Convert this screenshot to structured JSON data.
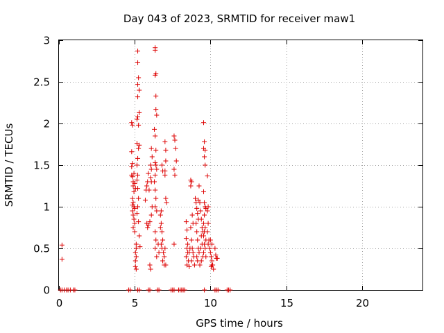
{
  "chart_data": {
    "type": "scatter",
    "title": "Day 043 of 2023, SRMTID for receiver maw1",
    "xlabel": "GPS time / hours",
    "ylabel": "SRMTID / TECUs",
    "xlim": [
      0,
      24
    ],
    "ylim": [
      0,
      3
    ],
    "xticks": [
      0,
      5,
      10,
      15,
      20
    ],
    "yticks": [
      0,
      0.5,
      1,
      1.5,
      2,
      2.5,
      3
    ],
    "xtick_labels": [
      "0",
      "5",
      "10",
      "15",
      "20"
    ],
    "ytick_labels": [
      "0",
      "0.5",
      "1",
      "1.5",
      "2",
      "2.5",
      "3"
    ],
    "grid": true,
    "marker": "+",
    "series": [
      {
        "color": "#dd0000",
        "points": [
          [
            0.2,
            0.54
          ],
          [
            0.2,
            0.37
          ],
          [
            0.1,
            0.0
          ],
          [
            0.2,
            0.0
          ],
          [
            0.35,
            0.0
          ],
          [
            0.5,
            0.0
          ],
          [
            0.6,
            0.0
          ],
          [
            0.75,
            0.0
          ],
          [
            0.95,
            0.0
          ],
          [
            1.05,
            0.0
          ],
          [
            4.6,
            0.0
          ],
          [
            4.7,
            0.0
          ],
          [
            5.2,
            0.0
          ],
          [
            5.3,
            0.0
          ],
          [
            5.9,
            0.0
          ],
          [
            6.0,
            0.0
          ],
          [
            6.5,
            0.0
          ],
          [
            6.6,
            0.0
          ],
          [
            7.4,
            0.0
          ],
          [
            7.5,
            0.0
          ],
          [
            7.6,
            0.0
          ],
          [
            7.9,
            0.0
          ],
          [
            8.0,
            0.0
          ],
          [
            8.1,
            0.0
          ],
          [
            8.2,
            0.0
          ],
          [
            8.3,
            0.0
          ],
          [
            9.6,
            0.0
          ],
          [
            10.3,
            0.0
          ],
          [
            10.4,
            0.0
          ],
          [
            10.5,
            0.0
          ],
          [
            11.1,
            0.0
          ],
          [
            11.2,
            0.0
          ],
          [
            11.3,
            0.0
          ],
          [
            4.8,
            2.01
          ],
          [
            4.85,
            1.98
          ],
          [
            4.8,
            1.66
          ],
          [
            4.85,
            1.52
          ],
          [
            4.8,
            1.48
          ],
          [
            4.8,
            1.38
          ],
          [
            4.85,
            1.36
          ],
          [
            4.9,
            1.3
          ],
          [
            4.9,
            1.25
          ],
          [
            4.95,
            1.18
          ],
          [
            4.85,
            1.1
          ],
          [
            4.9,
            1.05
          ],
          [
            4.85,
            1.02
          ],
          [
            4.95,
            1.0
          ],
          [
            5.0,
            0.98
          ],
          [
            4.85,
            0.95
          ],
          [
            4.9,
            0.9
          ],
          [
            4.95,
            0.85
          ],
          [
            5.0,
            0.8
          ],
          [
            4.9,
            0.75
          ],
          [
            5.0,
            0.7
          ],
          [
            4.95,
            1.4
          ],
          [
            5.0,
            1.28
          ],
          [
            5.05,
            1.22
          ],
          [
            5.1,
            0.55
          ],
          [
            5.1,
            0.5
          ],
          [
            5.05,
            0.45
          ],
          [
            5.1,
            0.4
          ],
          [
            5.05,
            0.35
          ],
          [
            5.05,
            0.28
          ],
          [
            5.1,
            0.25
          ],
          [
            5.2,
            2.87
          ],
          [
            5.2,
            2.73
          ],
          [
            5.25,
            2.55
          ],
          [
            5.2,
            2.47
          ],
          [
            5.3,
            2.4
          ],
          [
            5.2,
            2.32
          ],
          [
            5.3,
            2.13
          ],
          [
            5.2,
            2.08
          ],
          [
            5.15,
            2.05
          ],
          [
            5.25,
            1.98
          ],
          [
            5.15,
            1.76
          ],
          [
            5.3,
            1.74
          ],
          [
            5.25,
            1.7
          ],
          [
            5.2,
            1.58
          ],
          [
            5.15,
            1.5
          ],
          [
            5.2,
            1.38
          ],
          [
            5.15,
            1.32
          ],
          [
            5.2,
            1.22
          ],
          [
            5.25,
            1.1
          ],
          [
            5.2,
            1.0
          ],
          [
            5.15,
            0.92
          ],
          [
            5.25,
            0.82
          ],
          [
            5.3,
            0.65
          ],
          [
            5.35,
            0.52
          ],
          [
            5.7,
            1.08
          ],
          [
            5.75,
            1.2
          ],
          [
            5.8,
            1.25
          ],
          [
            5.85,
            1.3
          ],
          [
            5.9,
            1.4
          ],
          [
            5.95,
            1.2
          ],
          [
            5.8,
            0.8
          ],
          [
            5.85,
            0.75
          ],
          [
            5.9,
            0.78
          ],
          [
            6.0,
            0.82
          ],
          [
            6.05,
            1.5
          ],
          [
            6.1,
            1.7
          ],
          [
            6.15,
            1.6
          ],
          [
            6.1,
            1.45
          ],
          [
            6.05,
            1.35
          ],
          [
            6.1,
            1.3
          ],
          [
            6.15,
            1.0
          ],
          [
            6.1,
            0.9
          ],
          [
            6.0,
            0.3
          ],
          [
            6.05,
            0.25
          ],
          [
            6.35,
            2.91
          ],
          [
            6.35,
            2.88
          ],
          [
            6.4,
            2.6
          ],
          [
            6.35,
            2.58
          ],
          [
            6.4,
            2.33
          ],
          [
            6.4,
            2.17
          ],
          [
            6.45,
            2.1
          ],
          [
            6.3,
            1.93
          ],
          [
            6.35,
            1.85
          ],
          [
            6.4,
            1.68
          ],
          [
            6.35,
            1.53
          ],
          [
            6.4,
            1.5
          ],
          [
            6.45,
            1.45
          ],
          [
            6.35,
            1.38
          ],
          [
            6.3,
            1.3
          ],
          [
            6.35,
            1.2
          ],
          [
            6.4,
            1.1
          ],
          [
            6.35,
            1.0
          ],
          [
            6.45,
            0.95
          ],
          [
            6.35,
            0.7
          ],
          [
            6.4,
            0.6
          ],
          [
            6.35,
            0.5
          ],
          [
            6.45,
            0.4
          ],
          [
            6.55,
            0.55
          ],
          [
            6.6,
            0.45
          ],
          [
            6.7,
            0.9
          ],
          [
            6.75,
            0.8
          ],
          [
            6.7,
            0.75
          ],
          [
            6.8,
            0.7
          ],
          [
            6.85,
            0.6
          ],
          [
            6.75,
            0.55
          ],
          [
            6.8,
            0.5
          ],
          [
            6.9,
            0.45
          ],
          [
            6.95,
            0.4
          ],
          [
            6.85,
            0.35
          ],
          [
            6.75,
            0.95
          ],
          [
            6.85,
            1.43
          ],
          [
            6.8,
            1.5
          ],
          [
            7.0,
            1.43
          ],
          [
            7.0,
            1.38
          ],
          [
            7.05,
            1.55
          ],
          [
            7.05,
            1.68
          ],
          [
            7.0,
            1.78
          ],
          [
            7.05,
            1.1
          ],
          [
            7.1,
            1.05
          ],
          [
            7.0,
            0.5
          ],
          [
            7.05,
            0.3
          ],
          [
            6.95,
            0.3
          ],
          [
            7.6,
            1.85
          ],
          [
            7.65,
            1.8
          ],
          [
            7.7,
            1.7
          ],
          [
            7.75,
            1.55
          ],
          [
            7.6,
            1.45
          ],
          [
            7.65,
            1.38
          ],
          [
            7.6,
            0.55
          ],
          [
            8.4,
            0.82
          ],
          [
            8.45,
            0.72
          ],
          [
            8.4,
            0.62
          ],
          [
            8.5,
            0.55
          ],
          [
            8.45,
            0.5
          ],
          [
            8.5,
            0.45
          ],
          [
            8.4,
            0.4
          ],
          [
            8.55,
            0.35
          ],
          [
            8.45,
            0.3
          ],
          [
            8.6,
            0.28
          ],
          [
            8.7,
            1.32
          ],
          [
            8.75,
            1.3
          ],
          [
            8.7,
            1.25
          ],
          [
            8.8,
            0.9
          ],
          [
            8.85,
            0.8
          ],
          [
            8.7,
            0.75
          ],
          [
            8.75,
            0.6
          ],
          [
            8.8,
            0.5
          ],
          [
            8.85,
            0.45
          ],
          [
            8.9,
            0.4
          ],
          [
            8.75,
            0.35
          ],
          [
            8.65,
            0.5
          ],
          [
            8.6,
            0.45
          ],
          [
            8.95,
            0.3
          ],
          [
            9.0,
            1.1
          ],
          [
            9.05,
            1.05
          ],
          [
            9.1,
            0.98
          ],
          [
            9.15,
            0.92
          ],
          [
            9.2,
            0.85
          ],
          [
            9.05,
            0.8
          ],
          [
            9.1,
            0.7
          ],
          [
            9.15,
            0.6
          ],
          [
            9.2,
            0.5
          ],
          [
            9.25,
            0.45
          ],
          [
            9.1,
            0.4
          ],
          [
            9.15,
            0.35
          ],
          [
            9.3,
            0.3
          ],
          [
            9.2,
            1.08
          ],
          [
            9.25,
            1.25
          ],
          [
            9.3,
            1.05
          ],
          [
            9.35,
            0.95
          ],
          [
            9.4,
            0.85
          ],
          [
            9.45,
            0.75
          ],
          [
            9.5,
            0.7
          ],
          [
            9.4,
            0.65
          ],
          [
            9.45,
            0.55
          ],
          [
            9.35,
            0.5
          ],
          [
            9.5,
            0.4
          ],
          [
            9.4,
            0.35
          ],
          [
            9.55,
            2.01
          ],
          [
            9.6,
            1.78
          ],
          [
            9.55,
            1.7
          ],
          [
            9.65,
            1.68
          ],
          [
            9.6,
            1.6
          ],
          [
            9.65,
            1.5
          ],
          [
            9.55,
            1.18
          ],
          [
            9.6,
            1.05
          ],
          [
            9.65,
            1.0
          ],
          [
            9.7,
            0.98
          ],
          [
            9.6,
            0.9
          ],
          [
            9.55,
            0.8
          ],
          [
            9.65,
            0.75
          ],
          [
            9.6,
            0.7
          ],
          [
            9.55,
            0.65
          ],
          [
            9.7,
            0.6
          ],
          [
            9.6,
            0.55
          ],
          [
            9.65,
            0.5
          ],
          [
            9.55,
            0.45
          ],
          [
            9.7,
            0.4
          ],
          [
            9.8,
            1.37
          ],
          [
            9.85,
            1.0
          ],
          [
            9.8,
            0.95
          ],
          [
            9.85,
            0.8
          ],
          [
            9.8,
            0.7
          ],
          [
            9.9,
            0.6
          ],
          [
            9.85,
            0.55
          ],
          [
            9.95,
            0.5
          ],
          [
            10.0,
            0.45
          ],
          [
            10.05,
            0.4
          ],
          [
            10.1,
            0.35
          ],
          [
            10.15,
            0.3
          ],
          [
            10.2,
            0.25
          ],
          [
            10.0,
            0.6
          ],
          [
            10.1,
            0.55
          ],
          [
            10.3,
            0.5
          ],
          [
            10.35,
            0.42
          ],
          [
            10.4,
            0.38
          ],
          [
            10.45,
            0.38
          ],
          [
            10.05,
            0.28
          ],
          [
            10.1,
            0.3
          ]
        ]
      }
    ]
  }
}
